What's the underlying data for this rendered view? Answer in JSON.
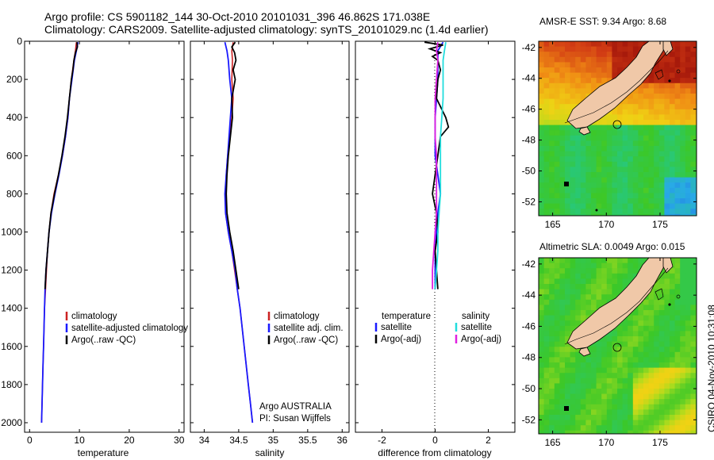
{
  "titles": {
    "line1": "Argo profile: CS 5901182_144 30-Oct-2010 20101031_396 46.862S 171.038E",
    "line2": "Climatology: CARS2009. Satellite-adjusted climatology: synTS_20101029.nc (1.4d earlier)"
  },
  "colors": {
    "climatology": "#cc2222",
    "satellite": "#1a1aff",
    "argo": "#000000",
    "sat_salinity": "#22dddd",
    "argo_salinity": "#e020e0",
    "land": "#f0c8a8"
  },
  "chart_data": [
    {
      "type": "line",
      "panel": "temperature",
      "xlabel": "temperature",
      "xlim": [
        -1,
        31
      ],
      "ylim": [
        0,
        2050
      ],
      "x_ticks": [
        "0",
        "10",
        "20",
        "30"
      ],
      "y_ticks": [
        "0",
        "200",
        "400",
        "600",
        "800",
        "1000",
        "1200",
        "1400",
        "1600",
        "1800",
        "2000"
      ],
      "legend": [
        "climatology",
        "satellite-adjusted climatology",
        "Argo(..raw -QC)"
      ],
      "series": [
        {
          "name": "climatology",
          "color": "#cc2222",
          "depth": [
            5,
            50,
            100,
            200,
            300,
            400,
            500,
            600,
            700,
            800,
            900,
            1000,
            1100,
            1200,
            1300,
            1400,
            1500,
            1600,
            1700,
            1800,
            1900,
            2000
          ],
          "values": [
            9.4,
            9.2,
            8.9,
            8.4,
            8.0,
            7.7,
            7.2,
            6.6,
            5.8,
            4.9,
            4.3,
            3.9,
            3.6,
            3.4,
            3.2,
            3.0,
            2.9,
            2.8,
            2.7,
            2.6,
            2.5,
            2.4
          ]
        },
        {
          "name": "satellite",
          "color": "#1a1aff",
          "depth": [
            5,
            50,
            100,
            200,
            300,
            400,
            500,
            600,
            700,
            800,
            900,
            1000,
            1100,
            1200,
            1300,
            1400,
            1500,
            1600,
            1700,
            1800,
            1900,
            2000
          ],
          "values": [
            9.7,
            9.4,
            9.0,
            8.5,
            8.0,
            7.7,
            7.2,
            6.6,
            5.9,
            5.1,
            4.4,
            3.9,
            3.6,
            3.3,
            3.1,
            3.0,
            2.9,
            2.8,
            2.7,
            2.6,
            2.5,
            2.4
          ]
        },
        {
          "name": "Argo",
          "color": "#000000",
          "depth": [
            5,
            30,
            60,
            100,
            150,
            200,
            300,
            400,
            500,
            600,
            700,
            800,
            900,
            1000,
            1100,
            1200,
            1300
          ],
          "values": [
            9.5,
            9.6,
            9.2,
            8.9,
            8.7,
            8.4,
            8.0,
            7.6,
            7.1,
            6.5,
            5.8,
            5.0,
            4.3,
            3.9,
            3.6,
            3.3,
            3.1
          ]
        }
      ]
    },
    {
      "type": "line",
      "panel": "salinity",
      "xlabel": "salinity",
      "xlim": [
        33.8,
        36.1
      ],
      "ylim": [
        0,
        2050
      ],
      "x_ticks": [
        "34",
        "34.5",
        "35",
        "35.5",
        "36"
      ],
      "legend": [
        "climatology",
        "satellite adj. clim.",
        "Argo(..raw -QC)"
      ],
      "annotation": [
        "Argo AUSTRALIA",
        "PI: Susan Wijffels"
      ],
      "series": [
        {
          "name": "climatology",
          "color": "#cc2222",
          "depth": [
            5,
            50,
            100,
            200,
            300,
            400,
            500,
            600,
            700,
            800,
            900,
            1000,
            1100,
            1200,
            1300,
            1400,
            1500,
            1600,
            1700,
            1800,
            1900,
            2000
          ],
          "values": [
            34.42,
            34.4,
            34.41,
            34.4,
            34.42,
            34.4,
            34.37,
            34.34,
            34.32,
            34.31,
            34.31,
            34.35,
            34.4,
            34.44,
            34.48,
            34.52,
            34.55,
            34.58,
            34.61,
            34.64,
            34.67,
            34.7
          ]
        },
        {
          "name": "satellite",
          "color": "#1a1aff",
          "depth": [
            5,
            50,
            100,
            200,
            300,
            400,
            500,
            600,
            700,
            800,
            900,
            1000,
            1100,
            1200,
            1300,
            1400,
            1500,
            1600,
            1700,
            1800,
            1900,
            2000
          ],
          "values": [
            34.3,
            34.33,
            34.35,
            34.37,
            34.4,
            34.38,
            34.36,
            34.34,
            34.32,
            34.3,
            34.31,
            34.35,
            34.4,
            34.45,
            34.48,
            34.52,
            34.55,
            34.58,
            34.61,
            34.64,
            34.67,
            34.7
          ]
        },
        {
          "name": "Argo",
          "color": "#000000",
          "depth": [
            5,
            30,
            60,
            100,
            150,
            200,
            300,
            400,
            500,
            600,
            700,
            800,
            900,
            1000,
            1100,
            1200,
            1300
          ],
          "values": [
            34.45,
            34.4,
            34.44,
            34.46,
            34.42,
            34.45,
            34.4,
            34.41,
            34.38,
            34.35,
            34.33,
            34.32,
            34.33,
            34.37,
            34.42,
            34.46,
            34.5
          ]
        }
      ]
    },
    {
      "type": "line",
      "panel": "difference",
      "xlabel": "difference from climatology",
      "xlim": [
        -3,
        3
      ],
      "ylim": [
        0,
        2050
      ],
      "x_ticks": [
        "-2",
        "0",
        "2"
      ],
      "legend_left_title": "temperature",
      "legend_left": [
        "satellite",
        "Argo(-adj)"
      ],
      "legend_right_title": "salinity",
      "legend_right": [
        "satellite",
        "Argo(-adj)"
      ],
      "series": [
        {
          "name": "temperature satellite",
          "color": "#1a1aff",
          "depth": [
            5,
            50,
            100,
            200,
            300,
            400,
            500,
            600,
            700,
            800,
            900,
            1000,
            1100,
            1200,
            1300
          ],
          "values": [
            0.3,
            0.1,
            0.1,
            0.1,
            0.05,
            0.0,
            0.0,
            0.0,
            0.1,
            0.2,
            0.1,
            0.05,
            0.0,
            0.0,
            0.0
          ]
        },
        {
          "name": "temperature Argo(-adj)",
          "color": "#000000",
          "depth": [
            5,
            20,
            40,
            60,
            80,
            100,
            150,
            200,
            300,
            400,
            450,
            500,
            600,
            700,
            800,
            900,
            1000,
            1100,
            1200,
            1300
          ],
          "values": [
            -0.4,
            0.3,
            -0.2,
            0.2,
            -0.1,
            0.1,
            0.2,
            0.1,
            0.05,
            0.4,
            0.5,
            0.2,
            0.1,
            0.0,
            -0.1,
            0.05,
            0.1,
            0.0,
            0.05,
            0.1
          ]
        },
        {
          "name": "salinity satellite",
          "color": "#22dddd",
          "depth": [
            5,
            50,
            100,
            200,
            300,
            400,
            500,
            600,
            700,
            800,
            900,
            1000,
            1100,
            1200,
            1300
          ],
          "values": [
            0.4,
            0.35,
            0.3,
            0.3,
            0.3,
            0.25,
            0.2,
            0.2,
            0.2,
            0.2,
            0.15,
            0.1,
            0.1,
            0.05,
            0.0
          ]
        },
        {
          "name": "salinity Argo(-adj)",
          "color": "#e020e0",
          "depth": [
            5,
            50,
            100,
            200,
            300,
            400,
            500,
            600,
            700,
            800,
            900,
            1000,
            1100,
            1200,
            1300
          ],
          "values": [
            0.1,
            0.05,
            0.1,
            0.05,
            0.0,
            0.0,
            0.0,
            0.05,
            0.05,
            0.05,
            0.05,
            0.0,
            -0.05,
            -0.1,
            -0.1
          ]
        }
      ]
    }
  ],
  "maps": {
    "sst": {
      "title": "AMSR-E SST: 9.34 Argo: 8.68",
      "lat_ticks": [
        "-42",
        "-44",
        "-46",
        "-48",
        "-50",
        "-52"
      ],
      "lon_ticks": [
        "165",
        "170",
        "175"
      ]
    },
    "sla": {
      "title": "Altimetric SLA: 0.0049 Argo: 0.015",
      "lat_ticks": [
        "-42",
        "-44",
        "-46",
        "-48",
        "-50",
        "-52"
      ],
      "lon_ticks": [
        "165",
        "170",
        "175"
      ]
    }
  },
  "credit": "CSIRO 04-Nov-2010 10:31:08"
}
